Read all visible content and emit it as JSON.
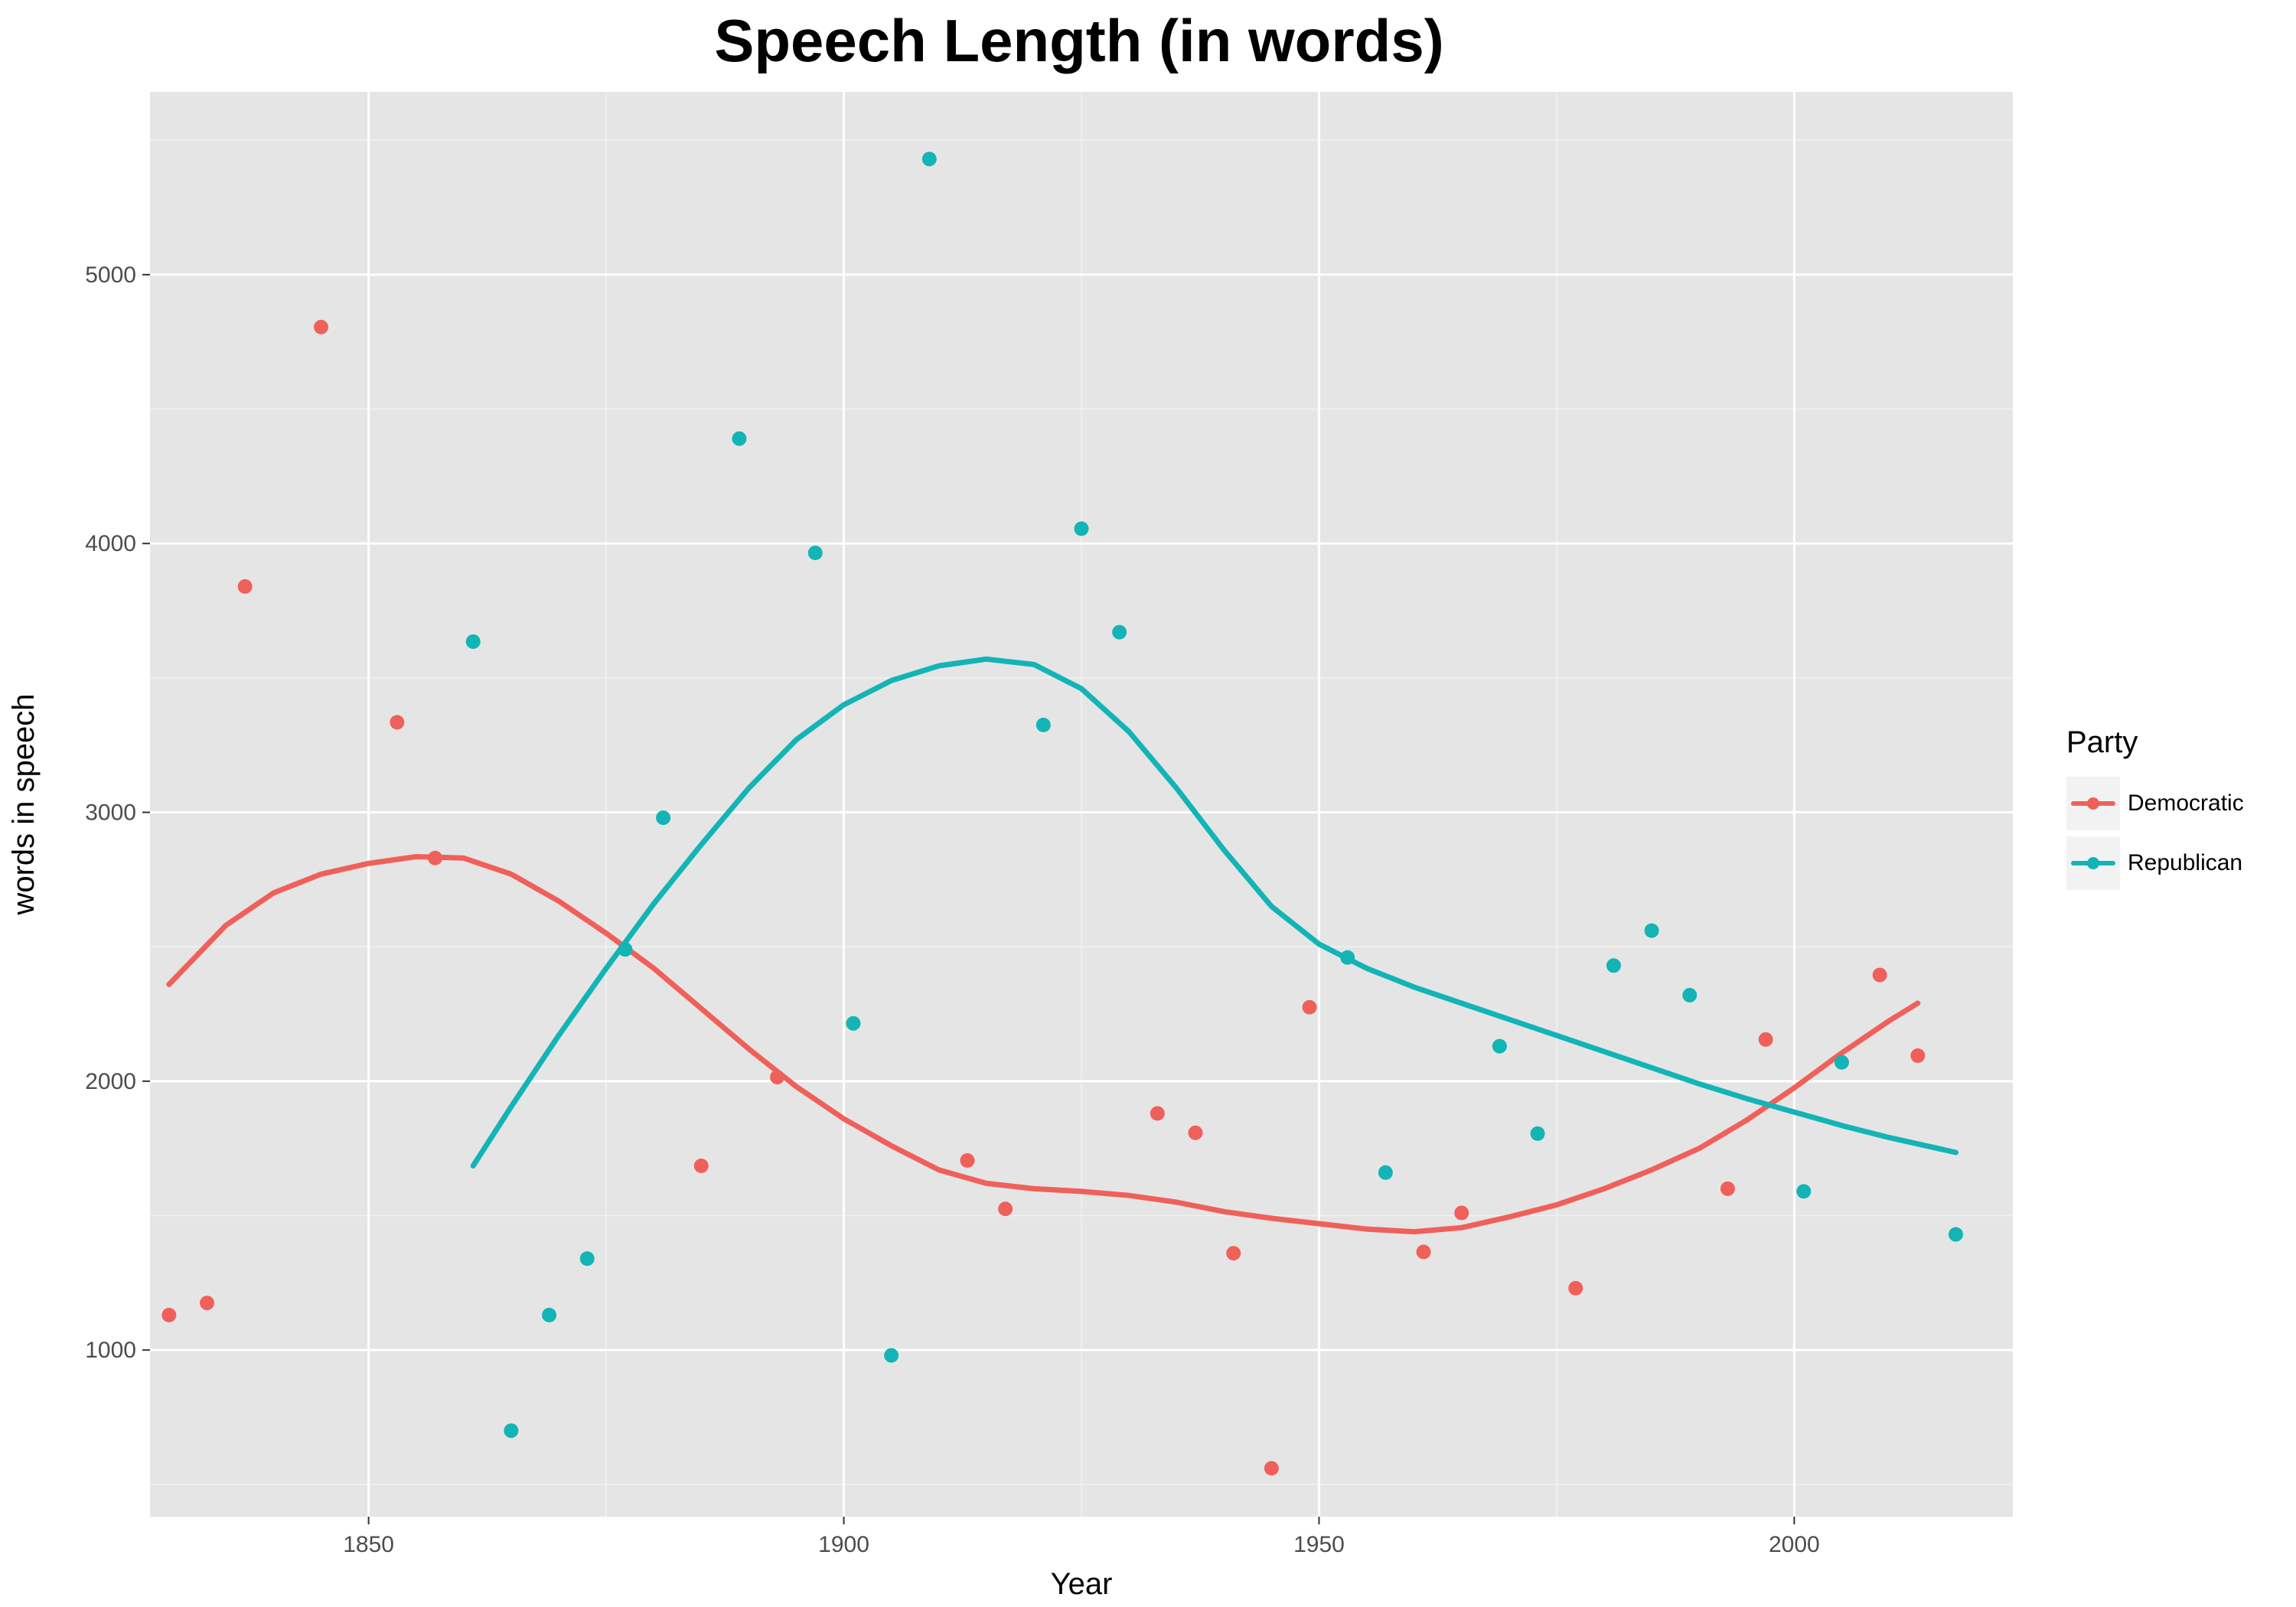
{
  "chart_data": {
    "type": "scatter",
    "title": "Speech Length (in words)",
    "xlabel": "Year",
    "ylabel": "words in speech",
    "xlim": [
      1827,
      2023
    ],
    "ylim": [
      380,
      5680
    ],
    "x_ticks": [
      1850,
      1900,
      1950,
      2000
    ],
    "y_ticks": [
      1000,
      2000,
      3000,
      4000,
      5000
    ],
    "x_tick_labels": [
      "1850",
      "1900",
      "1950",
      "2000"
    ],
    "y_tick_labels": [
      "1000",
      "2000",
      "3000",
      "4000",
      "5000"
    ],
    "grid": true,
    "legend": {
      "title": "Party",
      "placement": "right"
    },
    "series": [
      {
        "name": "Democratic",
        "color": "#f0605a",
        "points": [
          [
            1829,
            1130
          ],
          [
            1833,
            1175
          ],
          [
            1837,
            3840
          ],
          [
            1845,
            4805
          ],
          [
            1853,
            3335
          ],
          [
            1857,
            2830
          ],
          [
            1885,
            1685
          ],
          [
            1893,
            2015
          ],
          [
            1913,
            1705
          ],
          [
            1917,
            1525
          ],
          [
            1933,
            1880
          ],
          [
            1937,
            1808
          ],
          [
            1941,
            1360
          ],
          [
            1945,
            560
          ],
          [
            1949,
            2275
          ],
          [
            1961,
            1365
          ],
          [
            1965,
            1510
          ],
          [
            1977,
            1230
          ],
          [
            1993,
            1600
          ],
          [
            1997,
            2155
          ],
          [
            2009,
            2395
          ],
          [
            2013,
            2095
          ]
        ],
        "smooth": [
          [
            1829,
            2360
          ],
          [
            1835,
            2580
          ],
          [
            1840,
            2700
          ],
          [
            1845,
            2770
          ],
          [
            1850,
            2810
          ],
          [
            1855,
            2835
          ],
          [
            1860,
            2830
          ],
          [
            1865,
            2770
          ],
          [
            1870,
            2670
          ],
          [
            1875,
            2550
          ],
          [
            1880,
            2420
          ],
          [
            1885,
            2270
          ],
          [
            1890,
            2120
          ],
          [
            1895,
            1980
          ],
          [
            1900,
            1860
          ],
          [
            1905,
            1760
          ],
          [
            1910,
            1670
          ],
          [
            1915,
            1620
          ],
          [
            1920,
            1600
          ],
          [
            1925,
            1590
          ],
          [
            1930,
            1575
          ],
          [
            1935,
            1550
          ],
          [
            1940,
            1515
          ],
          [
            1945,
            1490
          ],
          [
            1950,
            1470
          ],
          [
            1955,
            1450
          ],
          [
            1960,
            1440
          ],
          [
            1965,
            1455
          ],
          [
            1970,
            1495
          ],
          [
            1975,
            1540
          ],
          [
            1980,
            1600
          ],
          [
            1985,
            1670
          ],
          [
            1990,
            1750
          ],
          [
            1995,
            1855
          ],
          [
            2000,
            1975
          ],
          [
            2005,
            2105
          ],
          [
            2010,
            2225
          ],
          [
            2013,
            2290
          ]
        ]
      },
      {
        "name": "Republican",
        "color": "#13b4b6",
        "points": [
          [
            1861,
            3635
          ],
          [
            1865,
            700
          ],
          [
            1869,
            1130
          ],
          [
            1873,
            1340
          ],
          [
            1877,
            2490
          ],
          [
            1881,
            2980
          ],
          [
            1889,
            4390
          ],
          [
            1897,
            3965
          ],
          [
            1901,
            2215
          ],
          [
            1905,
            980
          ],
          [
            1909,
            5430
          ],
          [
            1921,
            3325
          ],
          [
            1925,
            4055
          ],
          [
            1929,
            3670
          ],
          [
            1953,
            2460
          ],
          [
            1957,
            1660
          ],
          [
            1969,
            2130
          ],
          [
            1973,
            1805
          ],
          [
            1981,
            2430
          ],
          [
            1985,
            2560
          ],
          [
            1989,
            2320
          ],
          [
            2001,
            1590
          ],
          [
            2005,
            2070
          ],
          [
            2017,
            1430
          ]
        ],
        "smooth": [
          [
            1861,
            1685
          ],
          [
            1865,
            1905
          ],
          [
            1870,
            2170
          ],
          [
            1875,
            2420
          ],
          [
            1880,
            2660
          ],
          [
            1885,
            2880
          ],
          [
            1890,
            3090
          ],
          [
            1895,
            3270
          ],
          [
            1900,
            3400
          ],
          [
            1905,
            3490
          ],
          [
            1910,
            3545
          ],
          [
            1915,
            3570
          ],
          [
            1920,
            3550
          ],
          [
            1925,
            3460
          ],
          [
            1930,
            3300
          ],
          [
            1935,
            3090
          ],
          [
            1940,
            2860
          ],
          [
            1945,
            2650
          ],
          [
            1950,
            2510
          ],
          [
            1955,
            2420
          ],
          [
            1960,
            2350
          ],
          [
            1965,
            2290
          ],
          [
            1970,
            2230
          ],
          [
            1975,
            2170
          ],
          [
            1980,
            2110
          ],
          [
            1985,
            2050
          ],
          [
            1990,
            1990
          ],
          [
            1995,
            1935
          ],
          [
            2000,
            1885
          ],
          [
            2005,
            1835
          ],
          [
            2010,
            1790
          ],
          [
            2017,
            1735
          ]
        ]
      }
    ]
  }
}
